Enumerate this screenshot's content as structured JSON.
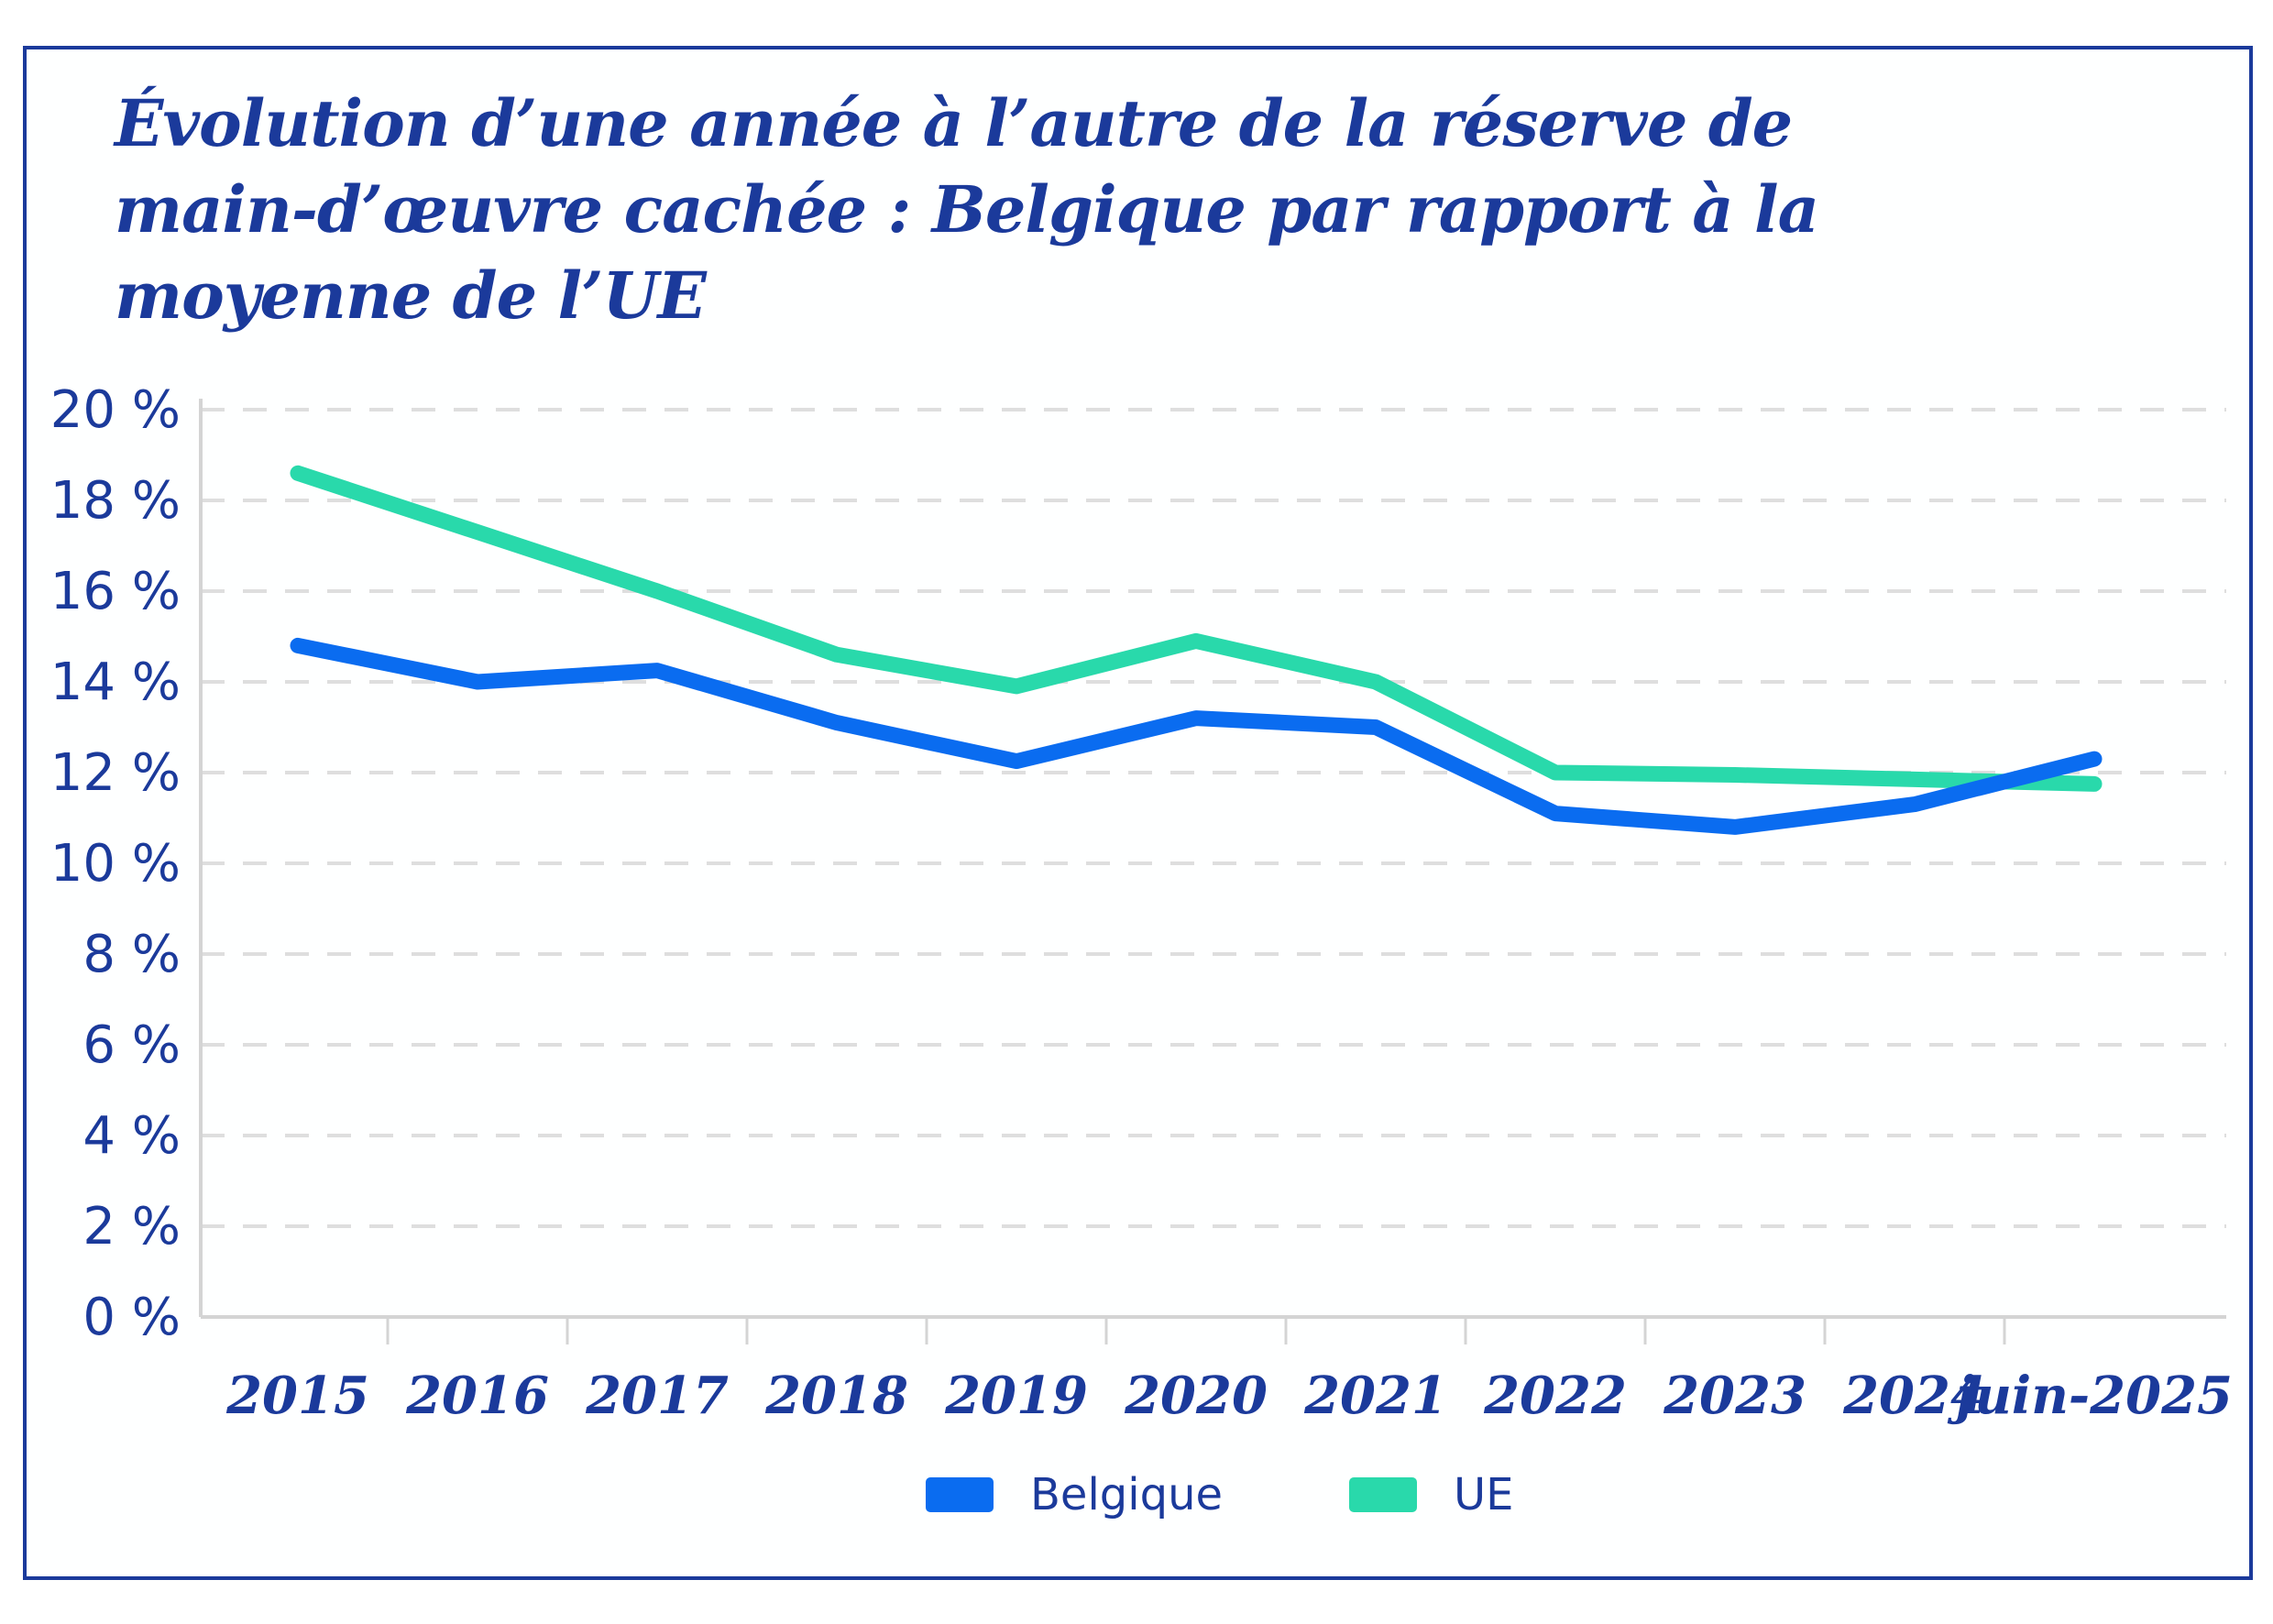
{
  "title_lines": {
    "0": "Évolution d’une année à l’autre de la réserve de",
    "1": "main-d’œuvre cachée : Belgique par rapport à la",
    "2": "moyenne de l’UE"
  },
  "title_full": "Évolution d’une année à l’autre de la réserve de main-d’œuvre cachée : Belgique par rapport à la moyenne de l’UE",
  "colors": {
    "navy_text": "#1B3A9B",
    "frame_border": "#1B3A9B",
    "belgique_line": "#0A6CF0",
    "ue_line": "#29D9AB",
    "gridline": "#DEDEDE",
    "axis_line": "#D4D4D4",
    "background": "#FEFFFF"
  },
  "chart_data": {
    "type": "line",
    "title": "Évolution d’une année à l’autre de la réserve de main-d’œuvre cachée : Belgique par rapport à la moyenne de l’UE",
    "categories": [
      "2015",
      "2016",
      "2017",
      "2018",
      "2019",
      "2020",
      "2021",
      "2022",
      "2023",
      "2024",
      "juin-2025"
    ],
    "series": [
      {
        "name": "Belgique",
        "color": "#0A6CF0",
        "values": [
          14.8,
          14.0,
          14.25,
          13.1,
          12.25,
          13.2,
          13.0,
          11.1,
          10.8,
          11.3,
          12.3
        ]
      },
      {
        "name": "UE",
        "color": "#29D9AB",
        "values": [
          18.6,
          17.3,
          16.0,
          14.6,
          13.9,
          14.9,
          14.0,
          12.0,
          11.95,
          11.85,
          11.75
        ]
      }
    ],
    "xlabel": "",
    "ylabel": "",
    "ylim": [
      0,
      20
    ],
    "ytick_step": 2,
    "yticks": [
      "0 %",
      "2 %",
      "4 %",
      "6 %",
      "8 %",
      "10 %",
      "12 %",
      "14 %",
      "16 %",
      "18 %",
      "20 %"
    ],
    "grid": "horizontal-dashed",
    "legend_position": "bottom-center",
    "legend": [
      "Belgique",
      "UE"
    ]
  }
}
